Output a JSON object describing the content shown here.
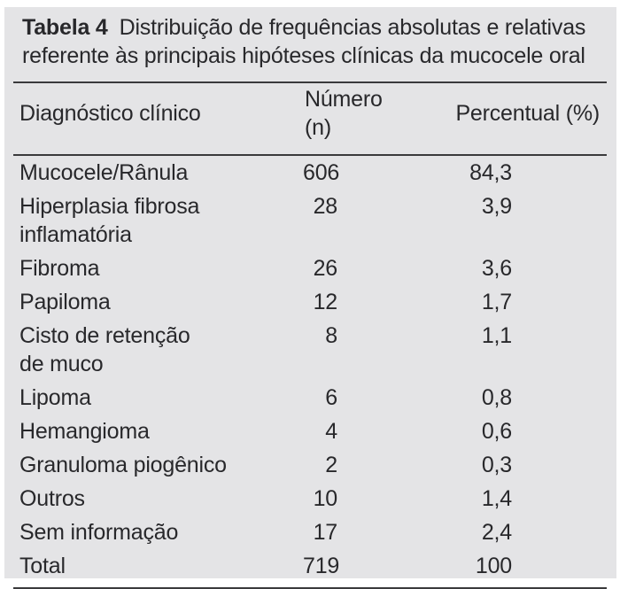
{
  "page": {
    "panel_bg": "#e4e4e6",
    "text_color": "#28282b",
    "rule_color": "#3a3a3c"
  },
  "caption": {
    "label": "Tabela 4",
    "text": "Distribuição de frequências absolutas e relativas\nreferente às principais hipóteses clínicas da mucocele oral"
  },
  "table": {
    "columns": [
      "Diagnóstico clínico",
      "Número (n)",
      "Percentual (%)"
    ],
    "rows": [
      {
        "diagnosis": "Mucocele/Rânula",
        "n": "606",
        "pct": "84,3"
      },
      {
        "diagnosis": "Hiperplasia fibrosa\ninflamatória",
        "n": "28",
        "pct": "3,9"
      },
      {
        "diagnosis": "Fibroma",
        "n": "26",
        "pct": "3,6"
      },
      {
        "diagnosis": "Papiloma",
        "n": "12",
        "pct": "1,7"
      },
      {
        "diagnosis": "Cisto de retenção\nde muco",
        "n": "8",
        "pct": "1,1"
      },
      {
        "diagnosis": "Lipoma",
        "n": "6",
        "pct": "0,8"
      },
      {
        "diagnosis": "Hemangioma",
        "n": "4",
        "pct": "0,6"
      },
      {
        "diagnosis": "Granuloma piogênico",
        "n": "2",
        "pct": "0,3"
      },
      {
        "diagnosis": "Outros",
        "n": "10",
        "pct": "1,4"
      },
      {
        "diagnosis": "Sem informação",
        "n": "17",
        "pct": "2,4"
      },
      {
        "diagnosis": "Total",
        "n": "719",
        "pct": "100"
      }
    ]
  }
}
